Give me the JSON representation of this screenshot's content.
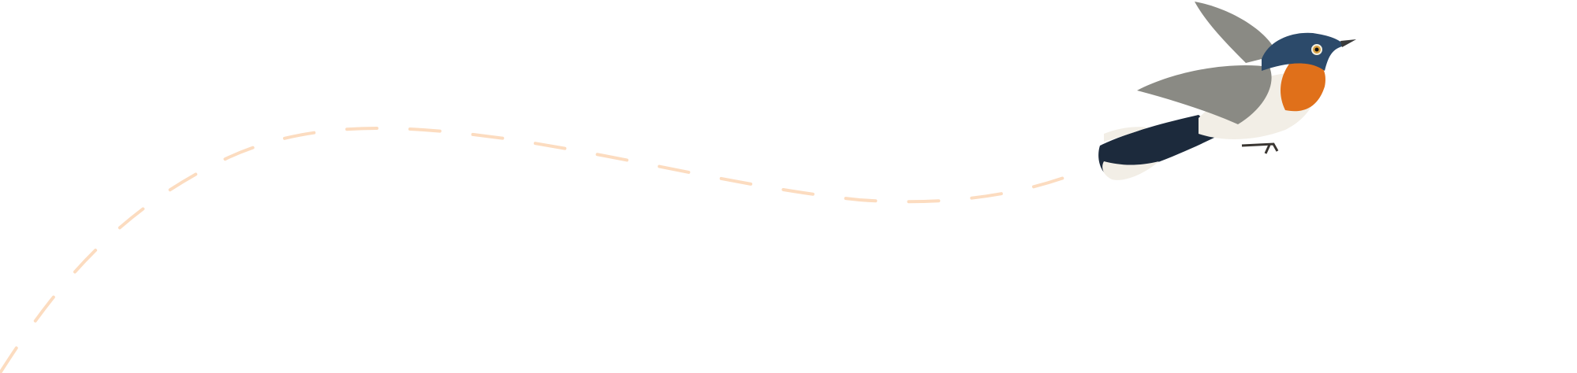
{
  "illustration": {
    "subject": "bird-in-flight",
    "colors": {
      "flight_path": "#fcdcc0",
      "breast": "#e0701a",
      "back": "#2c4a6a",
      "tail": "#1c2a3c",
      "belly": "#f2eee6",
      "wing": "#8a8a84"
    }
  }
}
